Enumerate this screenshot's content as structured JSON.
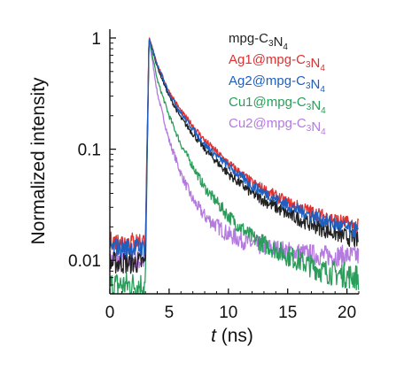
{
  "chart_data": {
    "type": "line",
    "xlabel_italic": "t",
    "xlabel_rest": " (ns)",
    "ylabel": "Normalized intensity",
    "xlim": [
      0,
      21
    ],
    "ylim": [
      0.005,
      1.2
    ],
    "yscale": "log",
    "grid": false,
    "legend_position": "top-right",
    "x_ticks": [
      0,
      5,
      10,
      15,
      20
    ],
    "x_tick_labels": [
      "0",
      "5",
      "10",
      "15",
      "20"
    ],
    "y_ticks": [
      0.01,
      0.1,
      1
    ],
    "y_tick_labels": [
      "0.01",
      "0.1",
      "1"
    ],
    "series": [
      {
        "name": "mpg-C3N4",
        "legend": {
          "prefix": "mpg-C",
          "sub1": "3",
          "mid": "N",
          "sub2": "4"
        },
        "color": "#222222",
        "baseline": 0.0095,
        "x": [
          3.3,
          3.5,
          4,
          5,
          6,
          8,
          10,
          12,
          15,
          18,
          21
        ],
        "y": [
          1.0,
          0.85,
          0.55,
          0.3,
          0.19,
          0.1,
          0.06,
          0.04,
          0.026,
          0.019,
          0.015
        ]
      },
      {
        "name": "Ag1@mpg-C3N4",
        "legend": {
          "prefix": "Ag1@mpg-C",
          "sub1": "3",
          "mid": "N",
          "sub2": "4"
        },
        "color": "#e03030",
        "baseline": 0.015,
        "x": [
          3.3,
          3.5,
          4,
          5,
          6,
          8,
          10,
          12,
          15,
          18,
          21
        ],
        "y": [
          1.0,
          0.87,
          0.58,
          0.33,
          0.22,
          0.12,
          0.075,
          0.05,
          0.033,
          0.025,
          0.02
        ]
      },
      {
        "name": "Ag2@mpg-C3N4",
        "legend": {
          "prefix": "Ag2@mpg-C",
          "sub1": "3",
          "mid": "N",
          "sub2": "4"
        },
        "color": "#1f5fc0",
        "baseline": 0.013,
        "x": [
          3.3,
          3.5,
          4,
          5,
          6,
          8,
          10,
          12,
          15,
          18,
          21
        ],
        "y": [
          1.0,
          0.86,
          0.57,
          0.32,
          0.21,
          0.11,
          0.07,
          0.047,
          0.031,
          0.023,
          0.018
        ]
      },
      {
        "name": "Cu1@mpg-C3N4",
        "legend": {
          "prefix": "Cu1@mpg-C",
          "sub1": "3",
          "mid": "N",
          "sub2": "4"
        },
        "color": "#2a9d5a",
        "baseline": 0.006,
        "x": [
          3.3,
          3.5,
          4,
          5,
          6,
          8,
          10,
          12,
          15,
          18,
          21
        ],
        "y": [
          1.0,
          0.78,
          0.42,
          0.2,
          0.11,
          0.045,
          0.025,
          0.016,
          0.011,
          0.008,
          0.007
        ]
      },
      {
        "name": "Cu2@mpg-C3N4",
        "legend": {
          "prefix": "Cu2@mpg-C",
          "sub1": "3",
          "mid": "N",
          "sub2": "4"
        },
        "color": "#b57ae0",
        "baseline": 0.01,
        "x": [
          3.3,
          3.5,
          4,
          5,
          6,
          7,
          8,
          10,
          12,
          15,
          18,
          21
        ],
        "y": [
          1.0,
          0.72,
          0.32,
          0.12,
          0.06,
          0.035,
          0.025,
          0.017,
          0.014,
          0.012,
          0.011,
          0.011
        ]
      }
    ]
  }
}
